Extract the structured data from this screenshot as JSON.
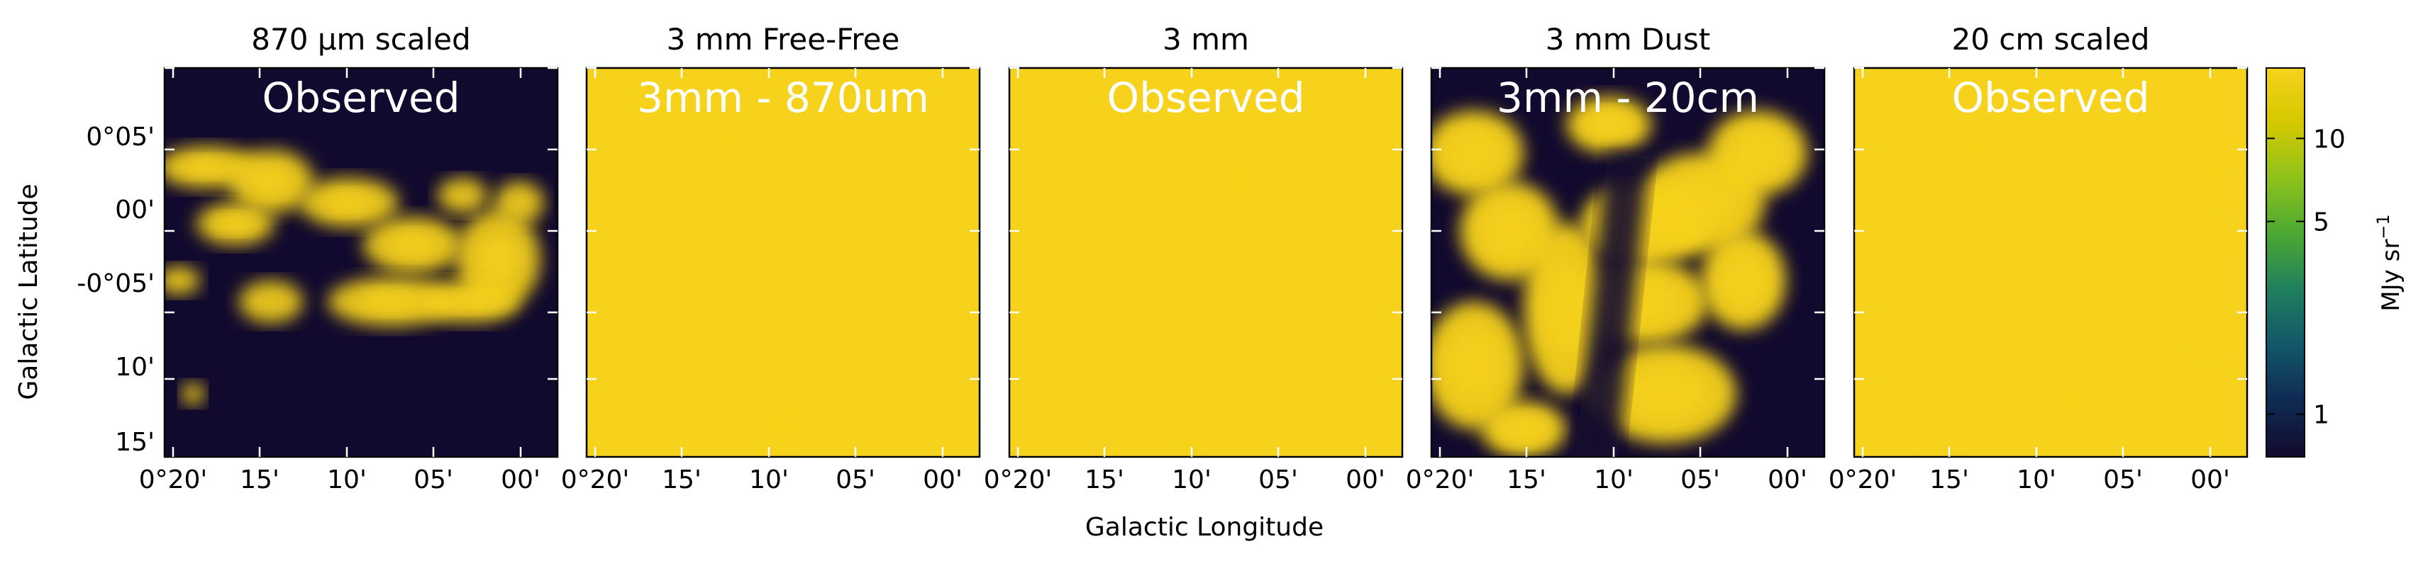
{
  "chart_data": {
    "type": "heatmap",
    "shared": {
      "xlabel": "Galactic Longitude",
      "ylabel": "Galactic Latitude",
      "x_tick_labels": [
        "0°20'",
        "15'",
        "10'",
        "05'",
        "00'"
      ],
      "y_tick_labels": [
        "0°05'",
        "00'",
        "-0°05'",
        "10'",
        "15'"
      ],
      "colorbar": {
        "label": "MJy sr",
        "label_superscript": "−1",
        "scale": "log",
        "range": [
          0.7,
          18
        ],
        "tick_labels": [
          "10",
          "5",
          "1"
        ],
        "tick_values": [
          10,
          5,
          1
        ],
        "colormap": [
          "#120a2e",
          "#0f2a52",
          "#12566a",
          "#1f7f5f",
          "#4aa832",
          "#8dc21c",
          "#d4c800",
          "#f6d21c"
        ]
      }
    },
    "panels": [
      {
        "title": "870 μm scaled",
        "annotation": "Observed",
        "style": "dust-clumps"
      },
      {
        "title": "3 mm Free-Free",
        "annotation": "3mm - 870um",
        "style": "free-free"
      },
      {
        "title": "3 mm",
        "annotation": "Observed",
        "style": "observed-3mm"
      },
      {
        "title": "3 mm Dust",
        "annotation": "3mm - 20cm",
        "style": "dust-residual"
      },
      {
        "title": "20 cm scaled",
        "annotation": "Observed",
        "style": "radio-20cm"
      }
    ]
  }
}
